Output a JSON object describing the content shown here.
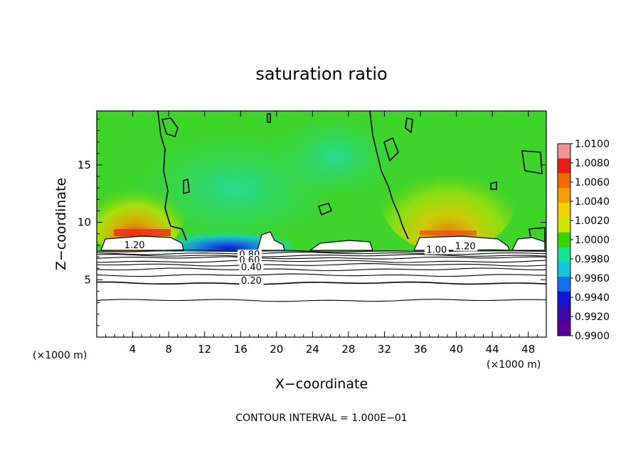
{
  "chart_data": {
    "type": "heatmap",
    "title": "saturation ratio",
    "xlabel": "X−coordinate",
    "ylabel": "Z−coordinate",
    "x_unit_left": "(×1000 m)",
    "x_unit_right": "(×1000 m)",
    "xlim": [
      0,
      50
    ],
    "ylim": [
      0,
      19.7
    ],
    "x_ticks": [
      4,
      8,
      12,
      16,
      20,
      24,
      28,
      32,
      36,
      40,
      44,
      48
    ],
    "y_ticks": [
      5,
      10,
      15
    ],
    "footer": "CONTOUR INTERVAL = 1.000E−01",
    "colorbar": {
      "min": 0.99,
      "max": 1.01,
      "ticks": [
        "1.0100",
        "1.0080",
        "1.0060",
        "1.0040",
        "1.0020",
        "1.0000",
        "0.9980",
        "0.9960",
        "0.9940",
        "0.9920",
        "0.9900"
      ],
      "colors": [
        "#f49393",
        "#ee1b1b",
        "#f46a00",
        "#f4a000",
        "#f2d200",
        "#cfe400",
        "#37d400",
        "#16e296",
        "#14c7dc",
        "#1470f0",
        "#1414d4",
        "#3a0aa6",
        "#5a0098"
      ]
    },
    "contour_labels": [
      {
        "text": "1.20",
        "x": 4.2,
        "y": 7.8
      },
      {
        "text": "1.20",
        "x": 41.0,
        "y": 7.7
      },
      {
        "text": "1.00",
        "x": 37.8,
        "y": 7.4
      },
      {
        "text": "0.80",
        "x": 17.0,
        "y": 7.0
      },
      {
        "text": "0.60",
        "x": 17.0,
        "y": 6.5
      },
      {
        "text": "0.40",
        "x": 17.2,
        "y": 5.9
      },
      {
        "text": "0.20",
        "x": 17.2,
        "y": 4.7
      }
    ],
    "contour_levels_below": [
      0.2,
      0.4,
      0.6,
      0.8,
      1.0,
      1.2
    ]
  }
}
